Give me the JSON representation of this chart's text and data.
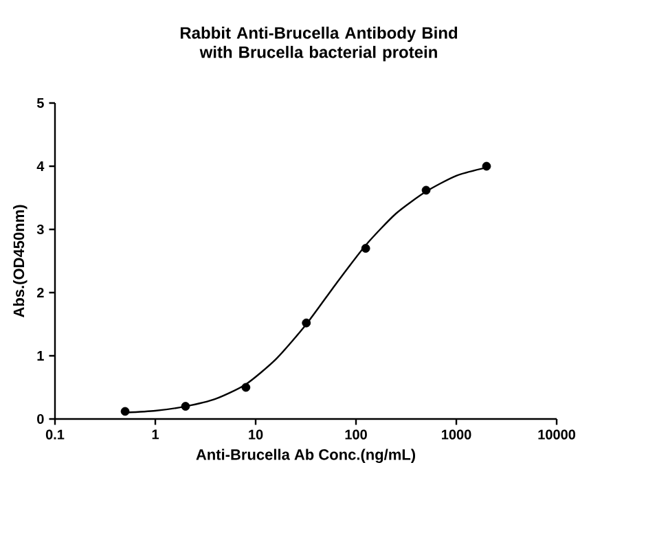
{
  "chart_data": {
    "type": "scatter",
    "title": "Rabbit Anti-Brucella Antibody Bind with Brucella bacterial protein",
    "xlabel": "Anti-Brucella Ab Conc.(ng/mL)",
    "ylabel": "Abs.(OD450nm)",
    "log": "x",
    "xlim": [
      0.1,
      10000
    ],
    "xticks": [
      0.1,
      1,
      10,
      100,
      1000,
      10000
    ],
    "ylim": [
      0,
      5
    ],
    "yticks": [
      0,
      1,
      2,
      3,
      4,
      5
    ],
    "series": [
      {
        "color": "#000000",
        "marker": "circle",
        "x": [
          0.5,
          2,
          8,
          32,
          125,
          500,
          2000
        ],
        "values": [
          0.12,
          0.2,
          0.5,
          1.52,
          2.7,
          3.62,
          4.0
        ]
      },
      {
        "type": "line",
        "color": "#000000",
        "marker": "none",
        "x": [
          0.5,
          1,
          2,
          4,
          8,
          16,
          32,
          64,
          125,
          250,
          500,
          1000,
          2000
        ],
        "values": [
          0.1,
          0.13,
          0.2,
          0.32,
          0.55,
          0.95,
          1.5,
          2.15,
          2.75,
          3.25,
          3.6,
          3.85,
          3.98
        ]
      }
    ]
  }
}
